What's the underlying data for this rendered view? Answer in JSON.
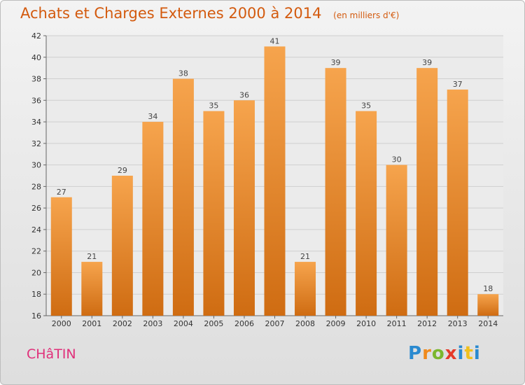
{
  "header": {
    "title": "Achats et Charges Externes 2000 à 2014",
    "subtitle": "(en milliers d'€)"
  },
  "footer": {
    "commune": "CHâTIN",
    "logo_text": "Proxiti"
  },
  "colors": {
    "bar_light": "#f6a44d",
    "bar_dark": "#cf6c12",
    "title": "#d35a0e",
    "commune": "#e0307a"
  },
  "chart_data": {
    "type": "bar",
    "title": "Achats et Charges Externes 2000 à 2014",
    "subtitle": "(en milliers d'€)",
    "xlabel": "",
    "ylabel": "",
    "categories": [
      "2000",
      "2001",
      "2002",
      "2003",
      "2004",
      "2005",
      "2006",
      "2007",
      "2008",
      "2009",
      "2010",
      "2011",
      "2012",
      "2013",
      "2014"
    ],
    "values": [
      27,
      21,
      29,
      34,
      38,
      35,
      36,
      41,
      21,
      39,
      35,
      30,
      39,
      37,
      18
    ],
    "ylim": [
      16,
      42
    ],
    "yticks": [
      16,
      18,
      20,
      22,
      24,
      26,
      28,
      30,
      32,
      34,
      36,
      38,
      40,
      42
    ],
    "grid": true,
    "legend": "none"
  }
}
